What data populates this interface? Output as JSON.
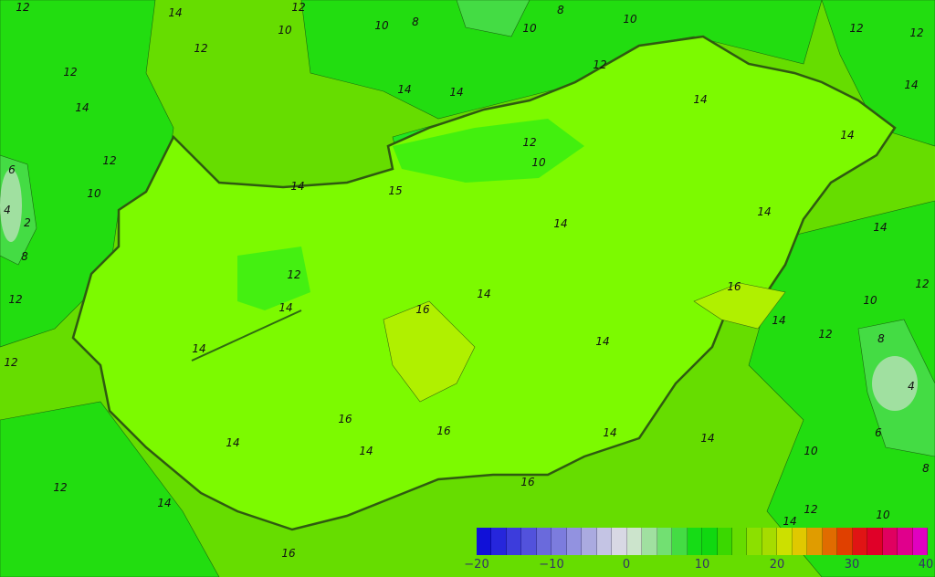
{
  "map": {
    "contour_labels": [
      "12",
      "14",
      "12",
      "10",
      "10",
      "8",
      "8",
      "10",
      "12",
      "10",
      "12",
      "14",
      "12",
      "14",
      "14",
      "12",
      "6",
      "10",
      "4",
      "2",
      "8",
      "12",
      "12",
      "14",
      "12",
      "10",
      "15",
      "14",
      "14",
      "14",
      "14",
      "12",
      "14",
      "16",
      "14",
      "16",
      "14",
      "16",
      "14",
      "16",
      "14",
      "16",
      "14",
      "14",
      "12",
      "10",
      "8",
      "12",
      "4",
      "6",
      "8",
      "14",
      "12",
      "10",
      "14",
      "12",
      "14",
      "10",
      "14",
      "14",
      "16",
      "12",
      "14",
      "12"
    ]
  },
  "legend": {
    "ticks": [
      "−20",
      "−10",
      "0",
      "10",
      "20",
      "30",
      "40"
    ],
    "colors": [
      "#1010d8",
      "#2626dc",
      "#3c3cdc",
      "#5252dc",
      "#6a6adc",
      "#7c7cde",
      "#9292e0",
      "#aaaae0",
      "#c4c4e4",
      "#d8d8e4",
      "#cce4cc",
      "#a0e0a0",
      "#72e072",
      "#44dc44",
      "#16dc16",
      "#10d810",
      "#3ad800",
      "#66dc00",
      "#8ce000",
      "#a6dc00",
      "#cce000",
      "#e0c800",
      "#e09c00",
      "#e06c00",
      "#e04000",
      "#e01414",
      "#e00028",
      "#e00060",
      "#e0008c",
      "#e000c0"
    ]
  }
}
